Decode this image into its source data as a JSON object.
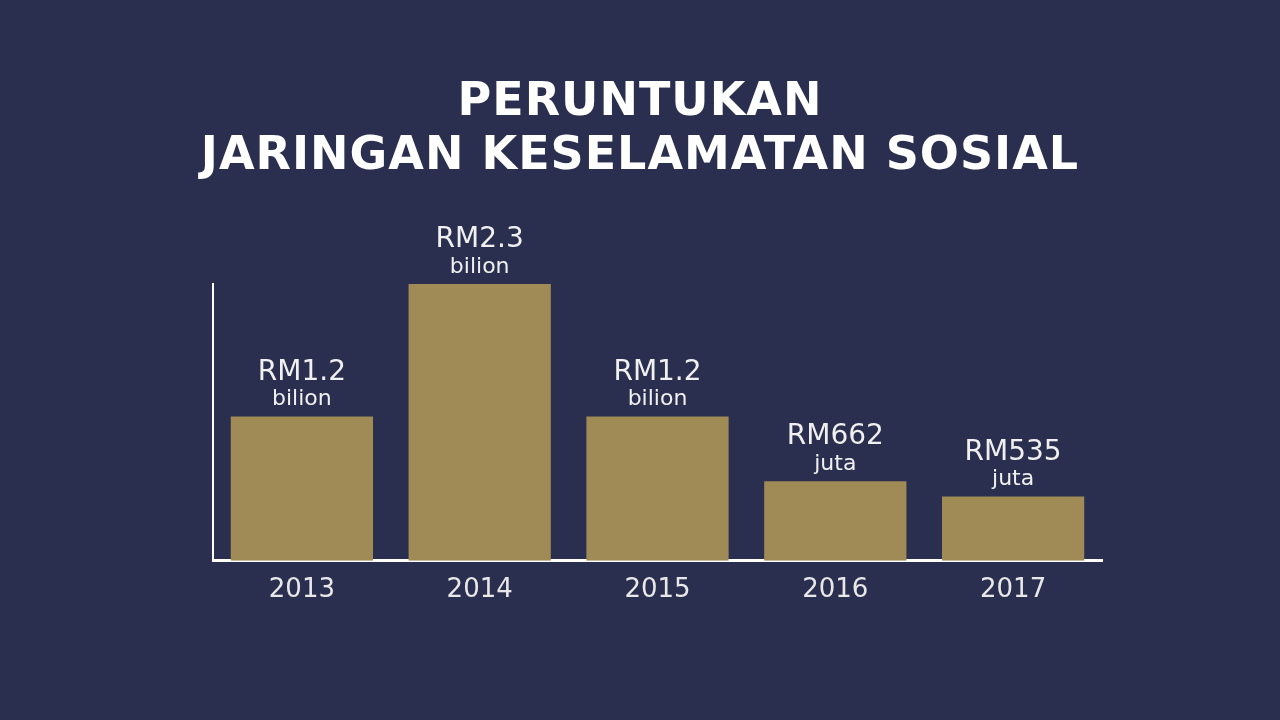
{
  "chart_data": {
    "type": "bar",
    "title": "PERUNTUKAN\nJARINGAN KESELAMATAN SOSIAL",
    "categories": [
      "2013",
      "2014",
      "2015",
      "2016",
      "2017"
    ],
    "tick_labels": "x",
    "values": [
      1200,
      2300,
      1200,
      662,
      535
    ],
    "value_labels": [
      "RM1.2 bilion",
      "RM2.3 bilion",
      "RM1.2 bilion",
      "RM662 juta",
      "RM535 juta"
    ],
    "color": "#a08a55",
    "grid": false,
    "legend": false
  }
}
